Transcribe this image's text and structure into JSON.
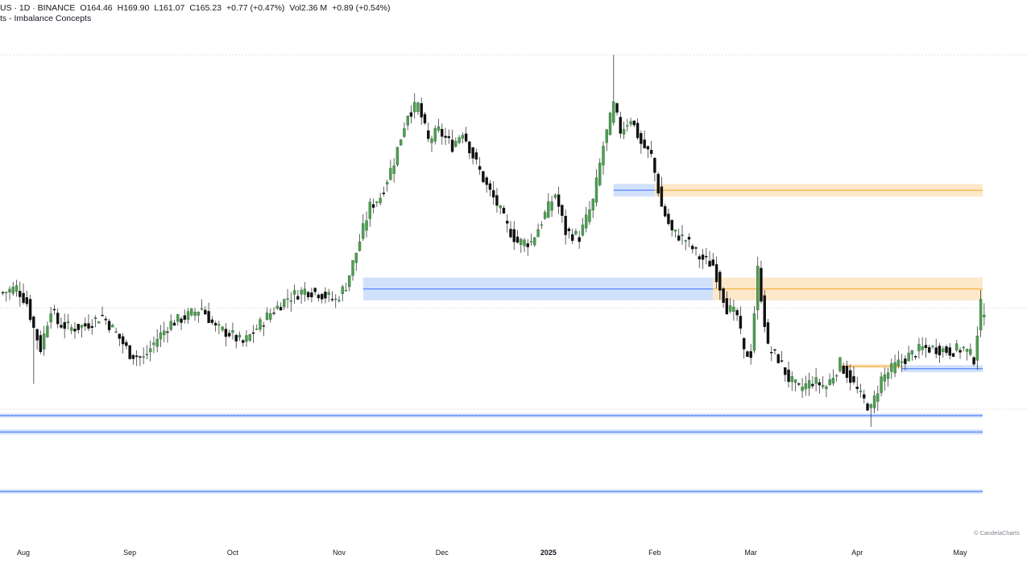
{
  "header": {
    "symbol": "US · 1D · BINANCE",
    "open": "O164.46",
    "high": "H169.90",
    "low": "L161.07",
    "close": "C165.23",
    "change": "+0.77 (+0.47%)",
    "volume": "Vol2.36 M",
    "vol_change": "+0.89 (+0.54%)",
    "indicator": "ts - Imbalance Concepts"
  },
  "watermark": "© CandelaCharts",
  "colors": {
    "up": "#4f9d55",
    "down": "#101010",
    "wick": "#3a3a3a",
    "zone_blue": "#c9dcfa",
    "zone_blue_line": "#2962ff",
    "zone_orange": "#fde6c4",
    "zone_orange_line": "#f29d0f",
    "grid": "#d6d6d6"
  },
  "chart_data": {
    "type": "candlestick",
    "x_axis_labels": [
      {
        "label": "Aug",
        "i": 6
      },
      {
        "label": "Sep",
        "i": 37
      },
      {
        "label": "Oct",
        "i": 67
      },
      {
        "label": "Nov",
        "i": 98
      },
      {
        "label": "Dec",
        "i": 128
      },
      {
        "label": "2025",
        "i": 159,
        "bold": true
      },
      {
        "label": "Feb",
        "i": 190
      },
      {
        "label": "Mar",
        "i": 218
      },
      {
        "label": "Apr",
        "i": 249
      },
      {
        "label": "May",
        "i": 279
      }
    ],
    "ohlc_anchor_points": [
      [
        0,
        174
      ],
      [
        4,
        176
      ],
      [
        7,
        170
      ],
      [
        9,
        160
      ],
      [
        11,
        152
      ],
      [
        14,
        168
      ],
      [
        16,
        162
      ],
      [
        20,
        160
      ],
      [
        24,
        161
      ],
      [
        29,
        165
      ],
      [
        33,
        158
      ],
      [
        37,
        150
      ],
      [
        41,
        148
      ],
      [
        45,
        156
      ],
      [
        49,
        162
      ],
      [
        54,
        165
      ],
      [
        58,
        168
      ],
      [
        62,
        160
      ],
      [
        66,
        158
      ],
      [
        70,
        154
      ],
      [
        74,
        160
      ],
      [
        78,
        166
      ],
      [
        83,
        172
      ],
      [
        88,
        175
      ],
      [
        92,
        174
      ],
      [
        97,
        171
      ],
      [
        100,
        177
      ],
      [
        103,
        190
      ],
      [
        107,
        208
      ],
      [
        110,
        212
      ],
      [
        114,
        226
      ],
      [
        118,
        245
      ],
      [
        121,
        248
      ],
      [
        124,
        234
      ],
      [
        127,
        238
      ],
      [
        131,
        232
      ],
      [
        134,
        238
      ],
      [
        137,
        228
      ],
      [
        141,
        216
      ],
      [
        144,
        209
      ],
      [
        147,
        200
      ],
      [
        150,
        194
      ],
      [
        154,
        194
      ],
      [
        158,
        205
      ],
      [
        161,
        213
      ],
      [
        164,
        198
      ],
      [
        168,
        196
      ],
      [
        172,
        210
      ],
      [
        175,
        232
      ],
      [
        178,
        248
      ],
      [
        180,
        238
      ],
      [
        183,
        243
      ],
      [
        186,
        233
      ],
      [
        189,
        228
      ],
      [
        192,
        208
      ],
      [
        195,
        198
      ],
      [
        199,
        195
      ],
      [
        203,
        188
      ],
      [
        207,
        185
      ],
      [
        211,
        168
      ],
      [
        214,
        165
      ],
      [
        216,
        150
      ],
      [
        218,
        150
      ],
      [
        220,
        183
      ],
      [
        223,
        152
      ],
      [
        226,
        148
      ],
      [
        229,
        140
      ],
      [
        232,
        136
      ],
      [
        236,
        139
      ],
      [
        240,
        137
      ],
      [
        244,
        146
      ],
      [
        247,
        140
      ],
      [
        250,
        133
      ],
      [
        253,
        128
      ],
      [
        256,
        140
      ],
      [
        260,
        145
      ],
      [
        264,
        149
      ],
      [
        268,
        152
      ],
      [
        272,
        152
      ],
      [
        276,
        151
      ],
      [
        280,
        152
      ],
      [
        283,
        148
      ],
      [
        285,
        169
      ]
    ],
    "notable_wicks": [
      {
        "i": 178,
        "high": 268
      },
      {
        "i": 212,
        "high": 172
      },
      {
        "i": 9,
        "low": 138
      },
      {
        "i": 253,
        "low": 121
      }
    ],
    "zones": [
      {
        "color": "blue",
        "x0": 105,
        "x1": 207,
        "y_top": 180,
        "y_bottom": 171,
        "mid": 175.5
      },
      {
        "color": "blue",
        "x0": 178,
        "x1": 190,
        "y_top": 217,
        "y_bottom": 212,
        "mid": 214.5
      },
      {
        "color": "orange",
        "x0": 190,
        "x1": 288,
        "y_top": 217,
        "y_bottom": 212,
        "mid": 214.5
      },
      {
        "color": "orange",
        "x0": 207,
        "x1": 288,
        "y_top": 180,
        "y_bottom": 171,
        "mid": 175.5
      },
      {
        "color": "orange",
        "x0": 244,
        "x1": 262,
        "y_top": 145.6,
        "y_bottom": 144.4,
        "mid": 145
      },
      {
        "color": "blue",
        "x0": 262,
        "x1": 288,
        "y_top": 145.4,
        "y_bottom": 142.6,
        "mid": 144
      },
      {
        "color": "blue",
        "x0": 0,
        "x1": 288,
        "y_top": 126,
        "y_bottom": 125,
        "mid": 125.5
      },
      {
        "color": "blue",
        "x0": 0,
        "x1": 288,
        "y_top": 120,
        "y_bottom": 118,
        "mid": 119
      },
      {
        "color": "blue",
        "x0": 0,
        "x1": 288,
        "y_top": 96,
        "y_bottom": 95,
        "mid": 95.5
      }
    ],
    "gridlines_y": [
      268,
      168,
      128
    ],
    "ylim": [
      80,
      272
    ],
    "n_candles": 287
  }
}
